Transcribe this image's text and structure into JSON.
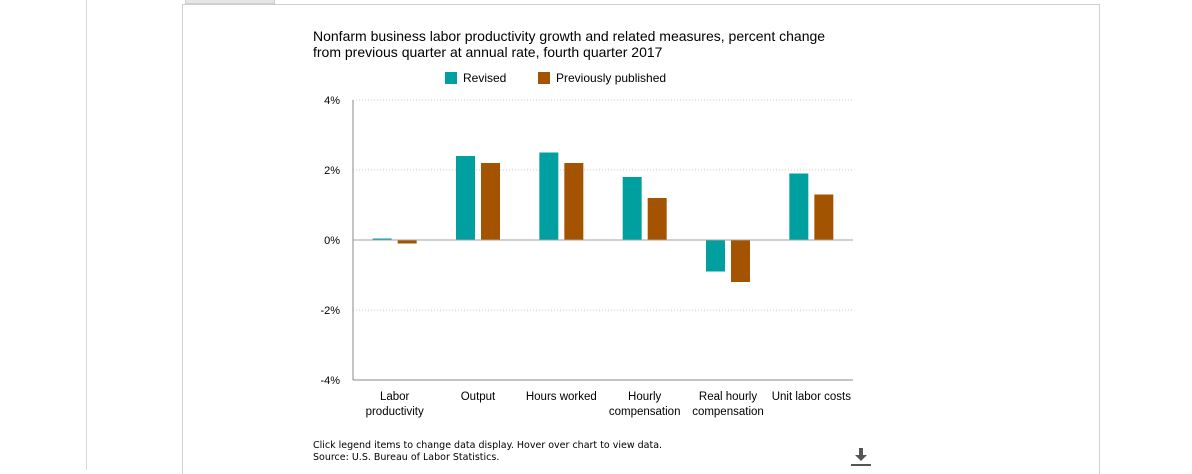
{
  "chart_data": {
    "type": "bar",
    "title": "Nonfarm business labor productivity growth and related measures, percent change from previous quarter at annual rate, fourth quarter 2017",
    "xlabel": "",
    "ylabel": "",
    "categories": [
      [
        "Labor",
        "productivity"
      ],
      [
        "Output"
      ],
      [
        "Hours worked"
      ],
      [
        "Hourly",
        "compensation"
      ],
      [
        "Real hourly",
        "compensation"
      ],
      [
        "Unit labor costs"
      ]
    ],
    "series": [
      {
        "name": "Revised",
        "color": "#00a0a0",
        "values": [
          0.0,
          2.4,
          2.5,
          1.8,
          -0.9,
          1.9
        ]
      },
      {
        "name": "Previously published",
        "color": "#a45400",
        "values": [
          -0.1,
          2.2,
          2.2,
          1.2,
          -1.2,
          1.3
        ]
      }
    ],
    "ylim": [
      -4,
      4
    ],
    "yticks": [
      4,
      2,
      0,
      -2,
      -4
    ],
    "ytick_labels": [
      "4%",
      "2%",
      "0%",
      "-2%",
      "-4%"
    ],
    "grid": true,
    "legend_position": "top-center"
  },
  "footnote": {
    "line1": "Click legend items to change data display. Hover over chart to view data.",
    "line2": "Source: U.S. Bureau of Labor Statistics."
  },
  "icons": {
    "download": "download-icon"
  }
}
